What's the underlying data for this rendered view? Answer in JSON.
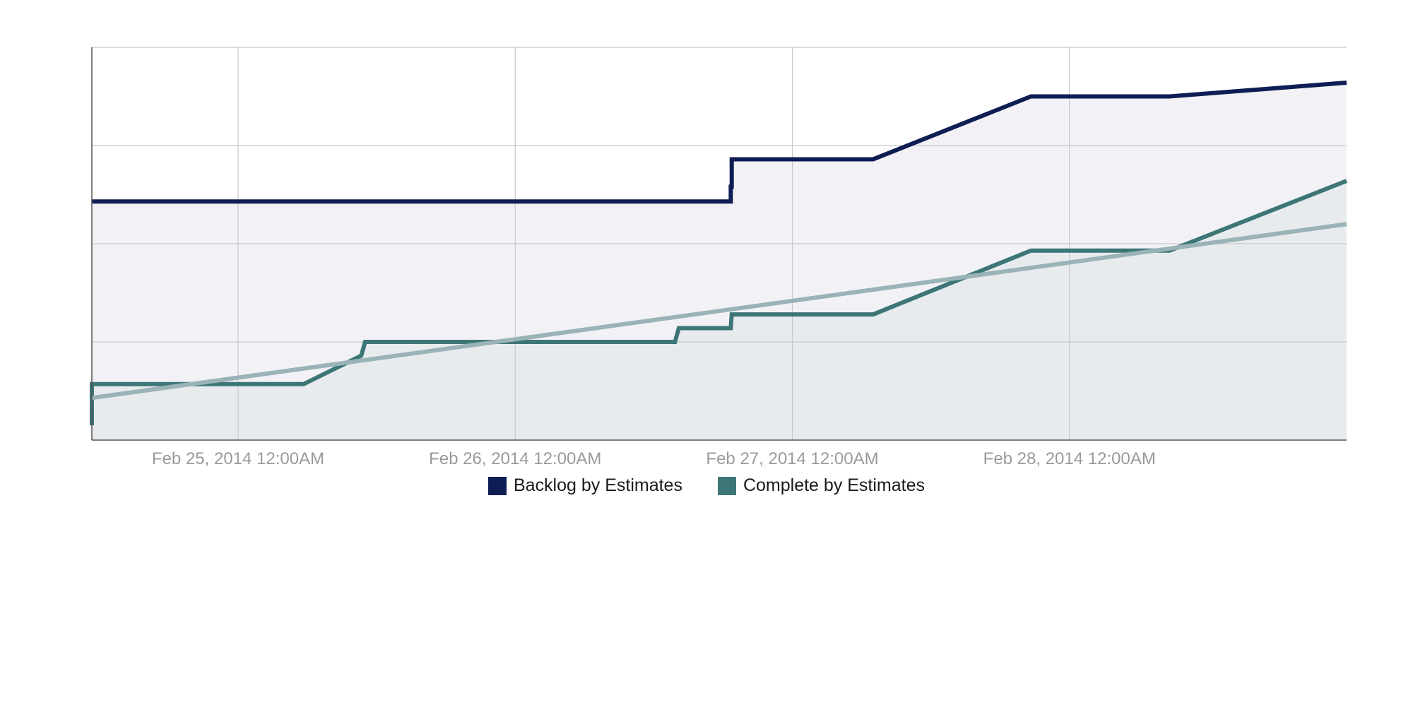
{
  "chart_data": {
    "type": "area",
    "title": "",
    "xlabel": "",
    "ylabel": "",
    "x_ticks": [
      {
        "date": "2014-02-25T00:00",
        "label": "Feb 25, 2014 12:00AM"
      },
      {
        "date": "2014-02-26T00:00",
        "label": "Feb 26, 2014 12:00AM"
      },
      {
        "date": "2014-02-27T00:00",
        "label": "Feb 27, 2014 12:00AM"
      },
      {
        "date": "2014-02-28T00:00",
        "label": "Feb 28, 2014 12:00AM"
      }
    ],
    "xlim": [
      "2014-02-24T11:20",
      "2014-03-01T00:00"
    ],
    "ylim": [
      0,
      4
    ],
    "y_gridlines": [
      1,
      2,
      3,
      4
    ],
    "grid": true,
    "legend_position": "bottom",
    "series": [
      {
        "name": "Backlog by Estimates",
        "color": "#0f1d55",
        "fill": "#f2f2f6",
        "points": [
          [
            "2014-02-24T11:20",
            2.43
          ],
          [
            "2014-02-26T18:40",
            2.43
          ],
          [
            "2014-02-26T18:40",
            2.58
          ],
          [
            "2014-02-26T18:45",
            2.58
          ],
          [
            "2014-02-26T18:45",
            2.86
          ],
          [
            "2014-02-27T07:00",
            2.86
          ],
          [
            "2014-02-27T20:40",
            3.5
          ],
          [
            "2014-02-28T08:40",
            3.5
          ],
          [
            "2014-03-01T00:00",
            3.64
          ]
        ]
      },
      {
        "name": "Complete by Estimates",
        "color": "#3d7676",
        "fill": "#e8ebee",
        "points": [
          [
            "2014-02-24T11:20",
            0.15
          ],
          [
            "2014-02-24T11:20",
            0.57
          ],
          [
            "2014-02-25T05:40",
            0.57
          ],
          [
            "2014-02-25T10:40",
            0.86
          ],
          [
            "2014-02-25T11:00",
            1.0
          ],
          [
            "2014-02-26T13:50",
            1.0
          ],
          [
            "2014-02-26T14:10",
            1.14
          ],
          [
            "2014-02-26T18:40",
            1.14
          ],
          [
            "2014-02-26T18:45",
            1.28
          ],
          [
            "2014-02-27T07:00",
            1.28
          ],
          [
            "2014-02-27T20:40",
            1.93
          ],
          [
            "2014-02-28T08:40",
            1.93
          ],
          [
            "2014-03-01T00:00",
            2.64
          ]
        ]
      },
      {
        "name": "",
        "kind": "trend",
        "color": "#9ab3b6",
        "points": [
          [
            "2014-02-24T11:20",
            0.43
          ],
          [
            "2014-03-01T00:00",
            2.2
          ]
        ]
      }
    ],
    "legend": [
      {
        "label": "Backlog by Estimates",
        "color": "#0f1d55"
      },
      {
        "label": "Complete by Estimates",
        "color": "#3d7676"
      }
    ]
  }
}
